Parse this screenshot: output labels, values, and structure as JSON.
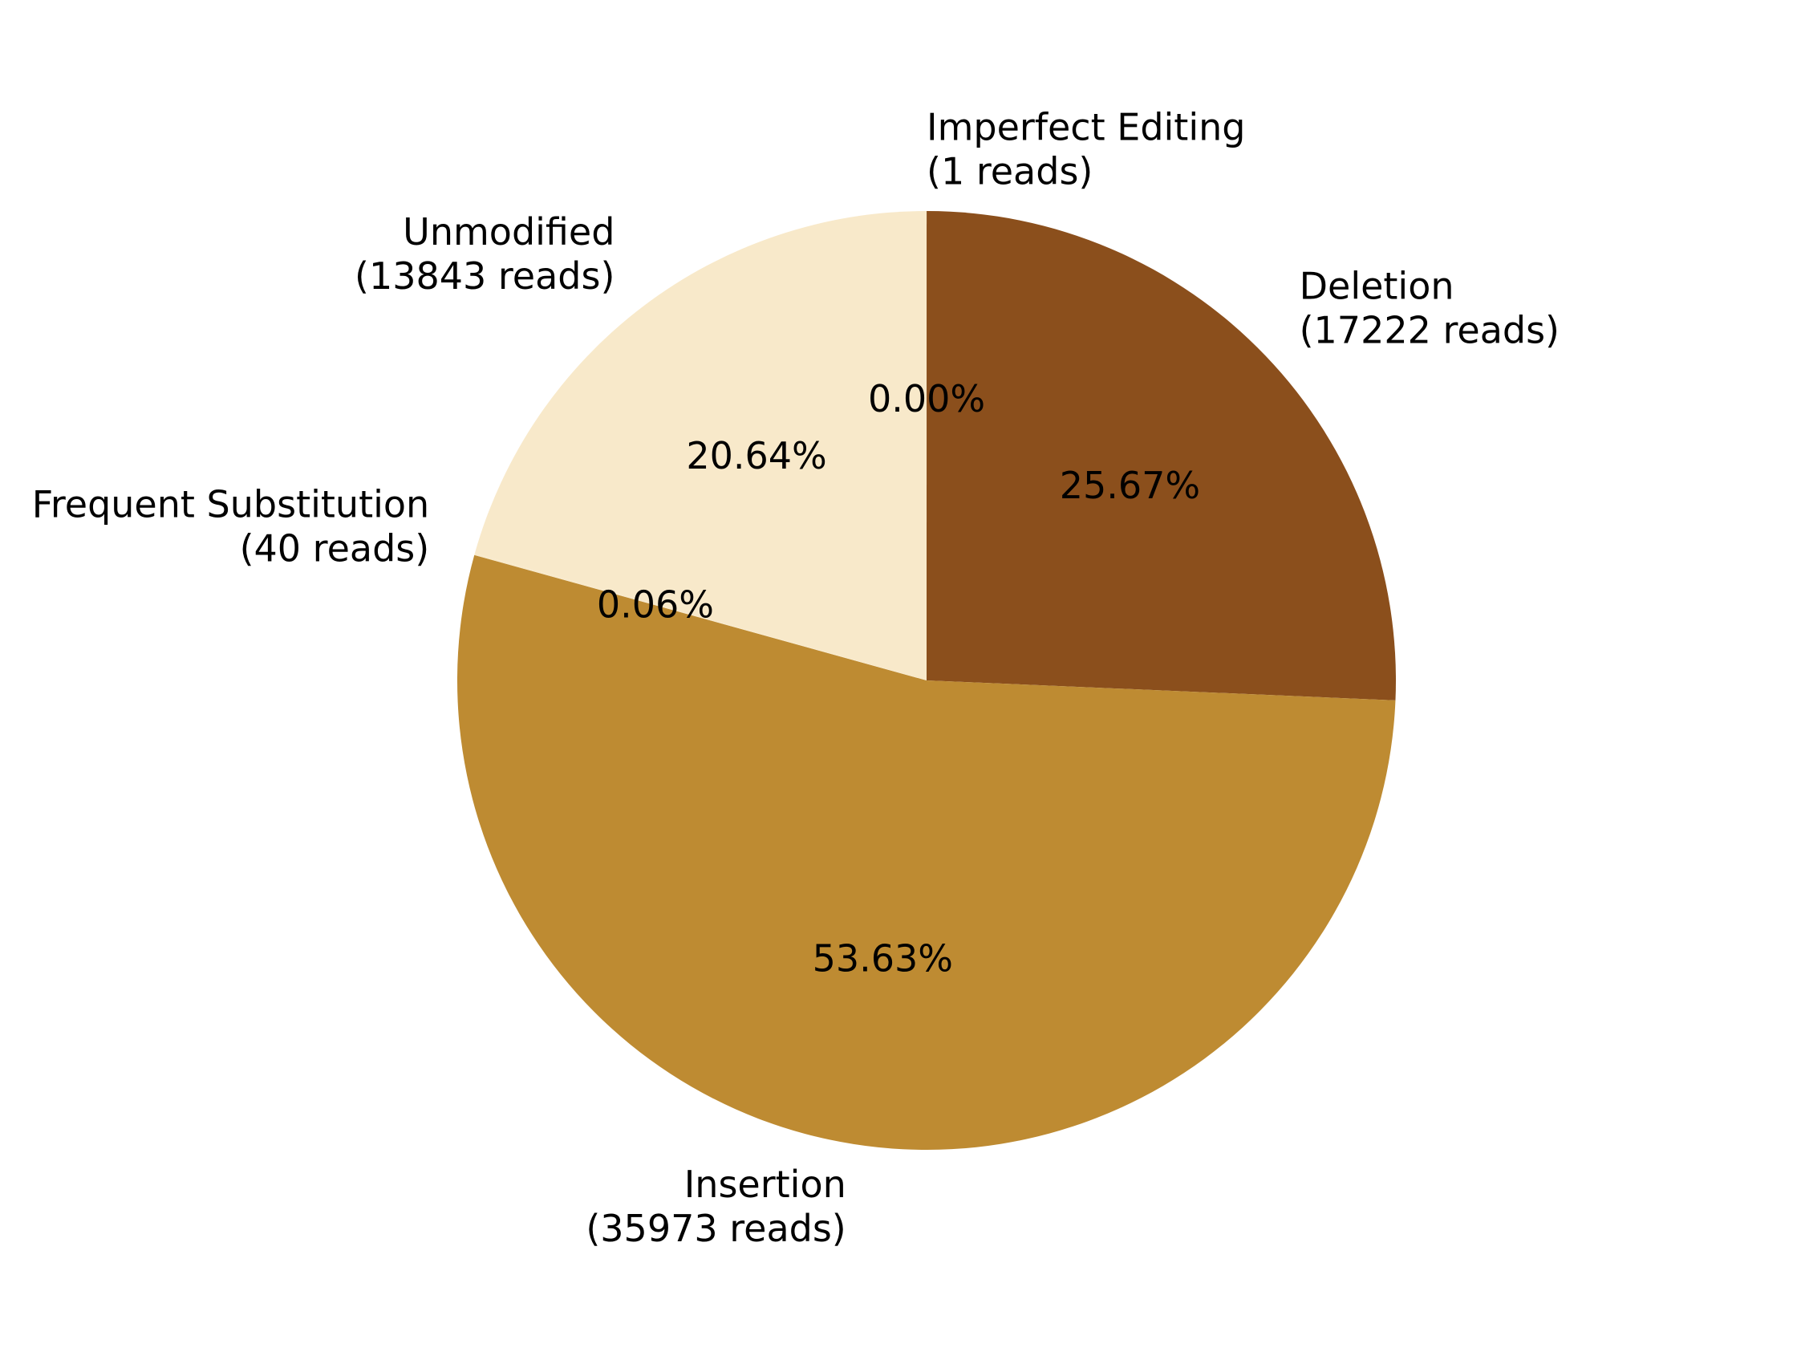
{
  "chart_data": {
    "type": "pie",
    "start_angle_deg": 90,
    "direction": "clockwise",
    "slices": [
      {
        "label": "Imperfect Editing",
        "sublabel": "(1 reads)",
        "reads": 1,
        "percent": 0.0,
        "percent_label": "0.00%",
        "color": "#f8e9ca"
      },
      {
        "label": "Deletion",
        "sublabel": "(17222 reads)",
        "reads": 17222,
        "percent": 25.67,
        "percent_label": "25.67%",
        "color": "#8b4f1c"
      },
      {
        "label": "Insertion",
        "sublabel": "(35973 reads)",
        "reads": 35973,
        "percent": 53.63,
        "percent_label": "53.63%",
        "color": "#be8b32"
      },
      {
        "label": "Frequent Substitution",
        "sublabel": "(40 reads)",
        "reads": 40,
        "percent": 0.06,
        "percent_label": "0.06%",
        "color": "#f8e9ca"
      },
      {
        "label": "Unmodified",
        "sublabel": "(13843 reads)",
        "reads": 13843,
        "percent": 20.64,
        "percent_label": "20.64%",
        "color": "#f8e9ca"
      }
    ]
  }
}
